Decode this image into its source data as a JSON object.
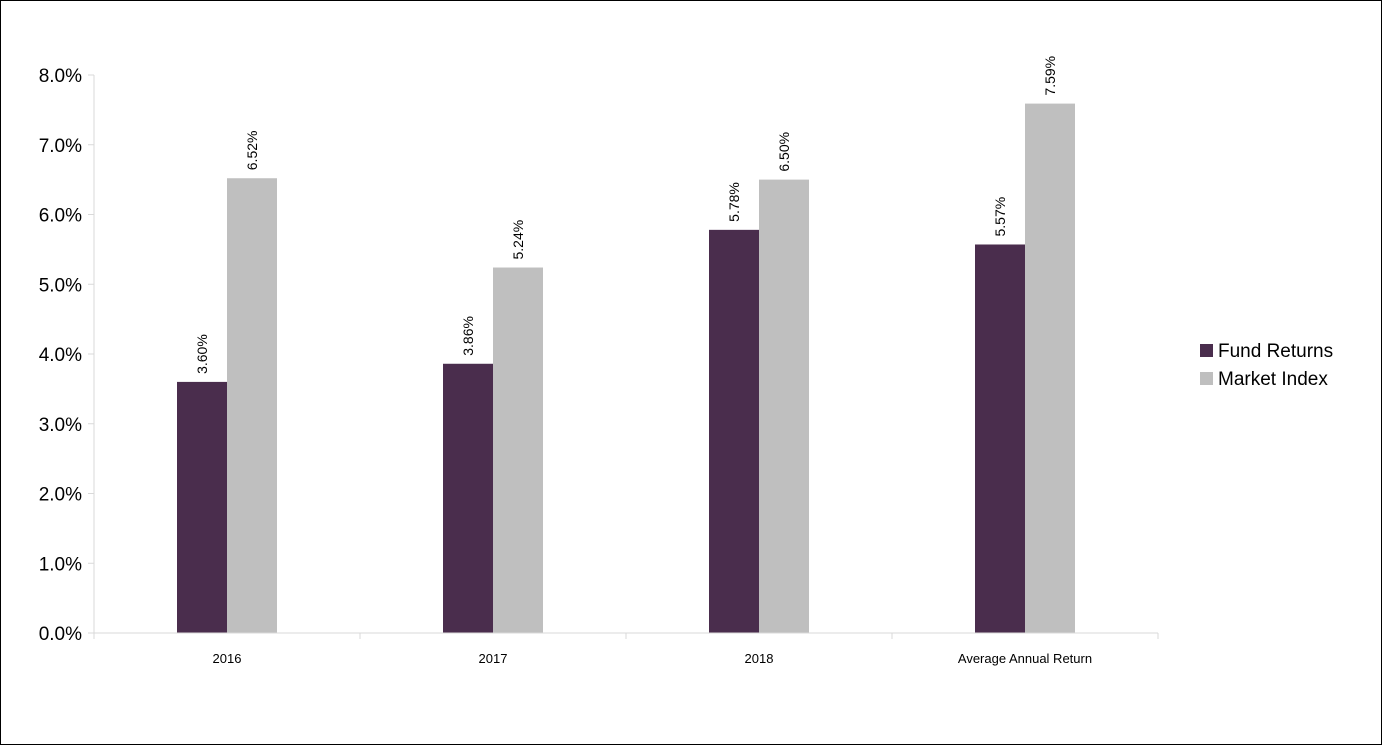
{
  "chart_data": {
    "type": "bar",
    "title": "",
    "xlabel": "",
    "ylabel": "",
    "categories": [
      "2016",
      "2017",
      "2018",
      "Average Annual Return"
    ],
    "series": [
      {
        "name": "Fund Returns",
        "color": "#4a2d4d",
        "values": [
          3.6,
          3.86,
          5.78,
          5.57
        ],
        "labels": [
          "3.60%",
          "3.86%",
          "5.78%",
          "5.57%"
        ]
      },
      {
        "name": "Market Index",
        "color": "#bfbfbf",
        "values": [
          6.52,
          5.24,
          6.5,
          7.59
        ],
        "labels": [
          "6.52%",
          "5.24%",
          "6.50%",
          "7.59%"
        ]
      }
    ],
    "ylim": [
      0,
      8
    ],
    "y_ticks": [
      0,
      1,
      2,
      3,
      4,
      5,
      6,
      7,
      8
    ],
    "y_tick_labels": [
      "0.0%",
      "1.0%",
      "2.0%",
      "3.0%",
      "4.0%",
      "5.0%",
      "6.0%",
      "7.0%",
      "8.0%"
    ],
    "grid": false,
    "legend_position": "right"
  }
}
